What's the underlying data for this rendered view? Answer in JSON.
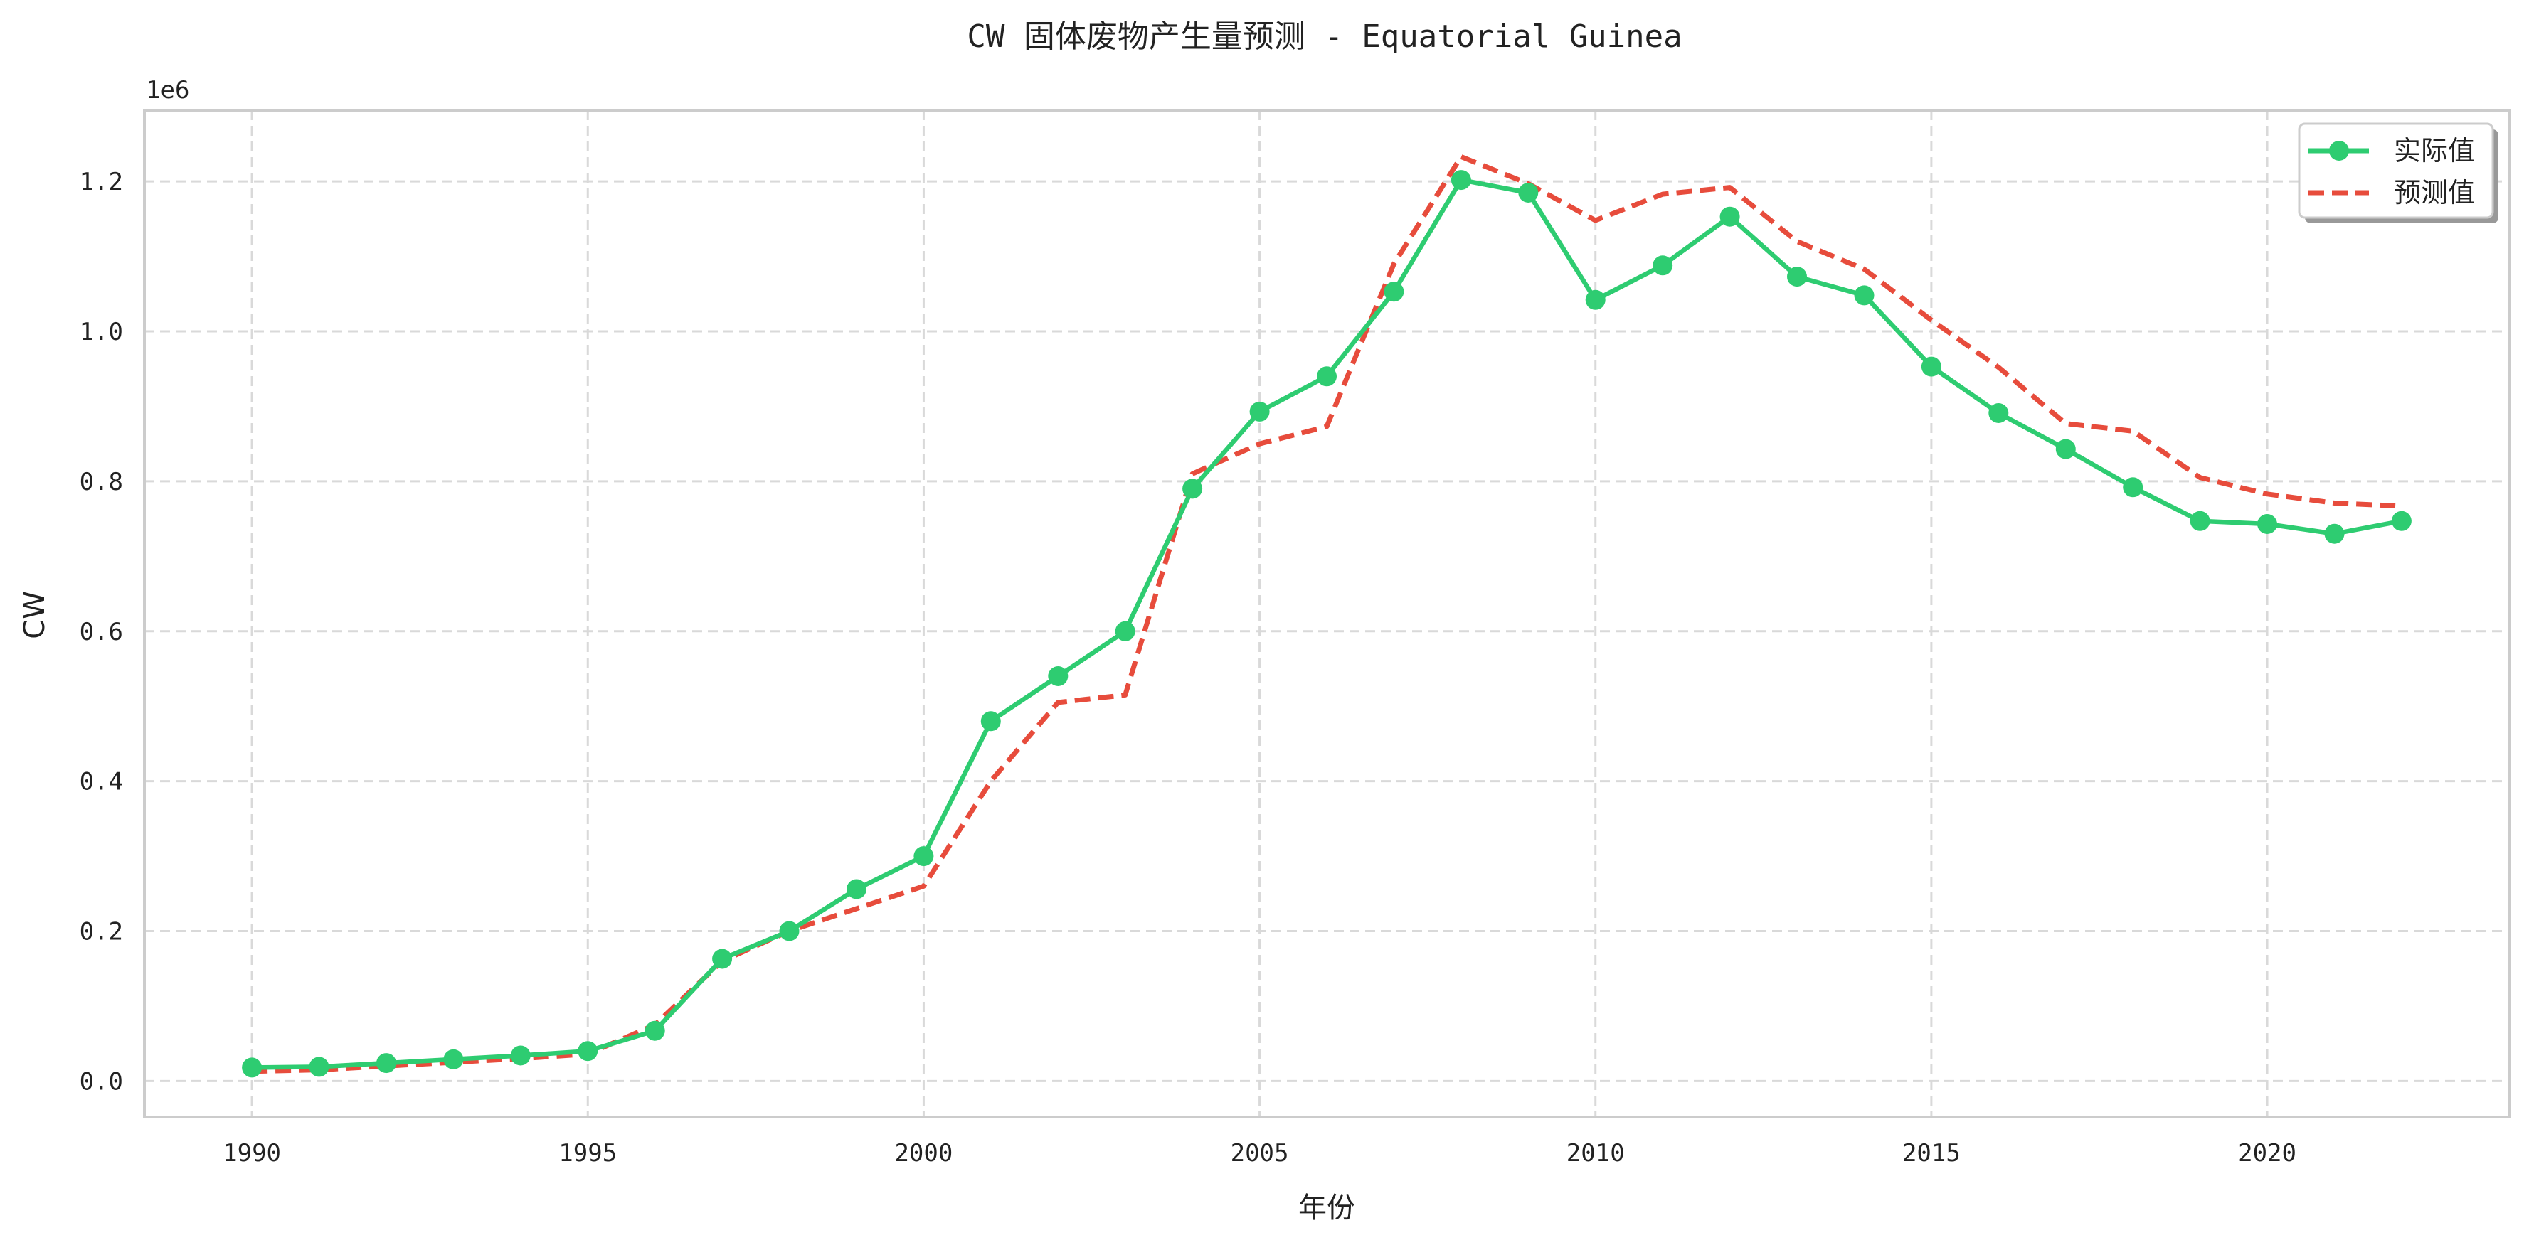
{
  "chart_data": {
    "type": "line",
    "title": "CW 固体废物产生量预测 - Equatorial Guinea",
    "xlabel": "年份",
    "ylabel": "CW",
    "y_multiplier_label": "1e6",
    "xlim": [
      1988.4,
      2023.6
    ],
    "ylim": [
      -0.048,
      1.295
    ],
    "x_ticks": [
      1990,
      1995,
      2000,
      2005,
      2010,
      2015,
      2020
    ],
    "y_ticks": [
      0.0,
      0.2,
      0.4,
      0.6,
      0.8,
      1.0,
      1.2
    ],
    "y_tick_labels": [
      "0.0",
      "0.2",
      "0.4",
      "0.6",
      "0.8",
      "1.0",
      "1.2"
    ],
    "grid": true,
    "legend_position": "top-right",
    "x": [
      1990,
      1991,
      1992,
      1993,
      1994,
      1995,
      1996,
      1997,
      1998,
      1999,
      2000,
      2001,
      2002,
      2003,
      2004,
      2005,
      2006,
      2007,
      2008,
      2009,
      2010,
      2011,
      2012,
      2013,
      2014,
      2015,
      2016,
      2017,
      2018,
      2019,
      2020,
      2021,
      2022
    ],
    "series": [
      {
        "name": "实际值",
        "color": "#2ecc71",
        "style": "solid",
        "marker": "circle",
        "values": [
          0.018,
          0.019,
          0.024,
          0.029,
          0.034,
          0.04,
          0.067,
          0.163,
          0.2,
          0.256,
          0.3,
          0.48,
          0.54,
          0.6,
          0.79,
          0.893,
          0.94,
          1.053,
          1.202,
          1.185,
          1.042,
          1.088,
          1.153,
          1.073,
          1.048,
          0.953,
          0.891,
          0.843,
          0.792,
          0.747,
          0.743,
          0.73,
          0.747
        ]
      },
      {
        "name": "预测值",
        "color": "#e74c3c",
        "style": "dashed",
        "marker": "none",
        "values": [
          0.013,
          0.015,
          0.02,
          0.025,
          0.03,
          0.036,
          0.075,
          0.16,
          0.2,
          0.23,
          0.26,
          0.4,
          0.505,
          0.515,
          0.81,
          0.85,
          0.873,
          1.09,
          1.233,
          1.197,
          1.148,
          1.183,
          1.192,
          1.12,
          1.083,
          1.015,
          0.952,
          0.877,
          0.867,
          0.805,
          0.783,
          0.771,
          0.767
        ]
      }
    ]
  }
}
